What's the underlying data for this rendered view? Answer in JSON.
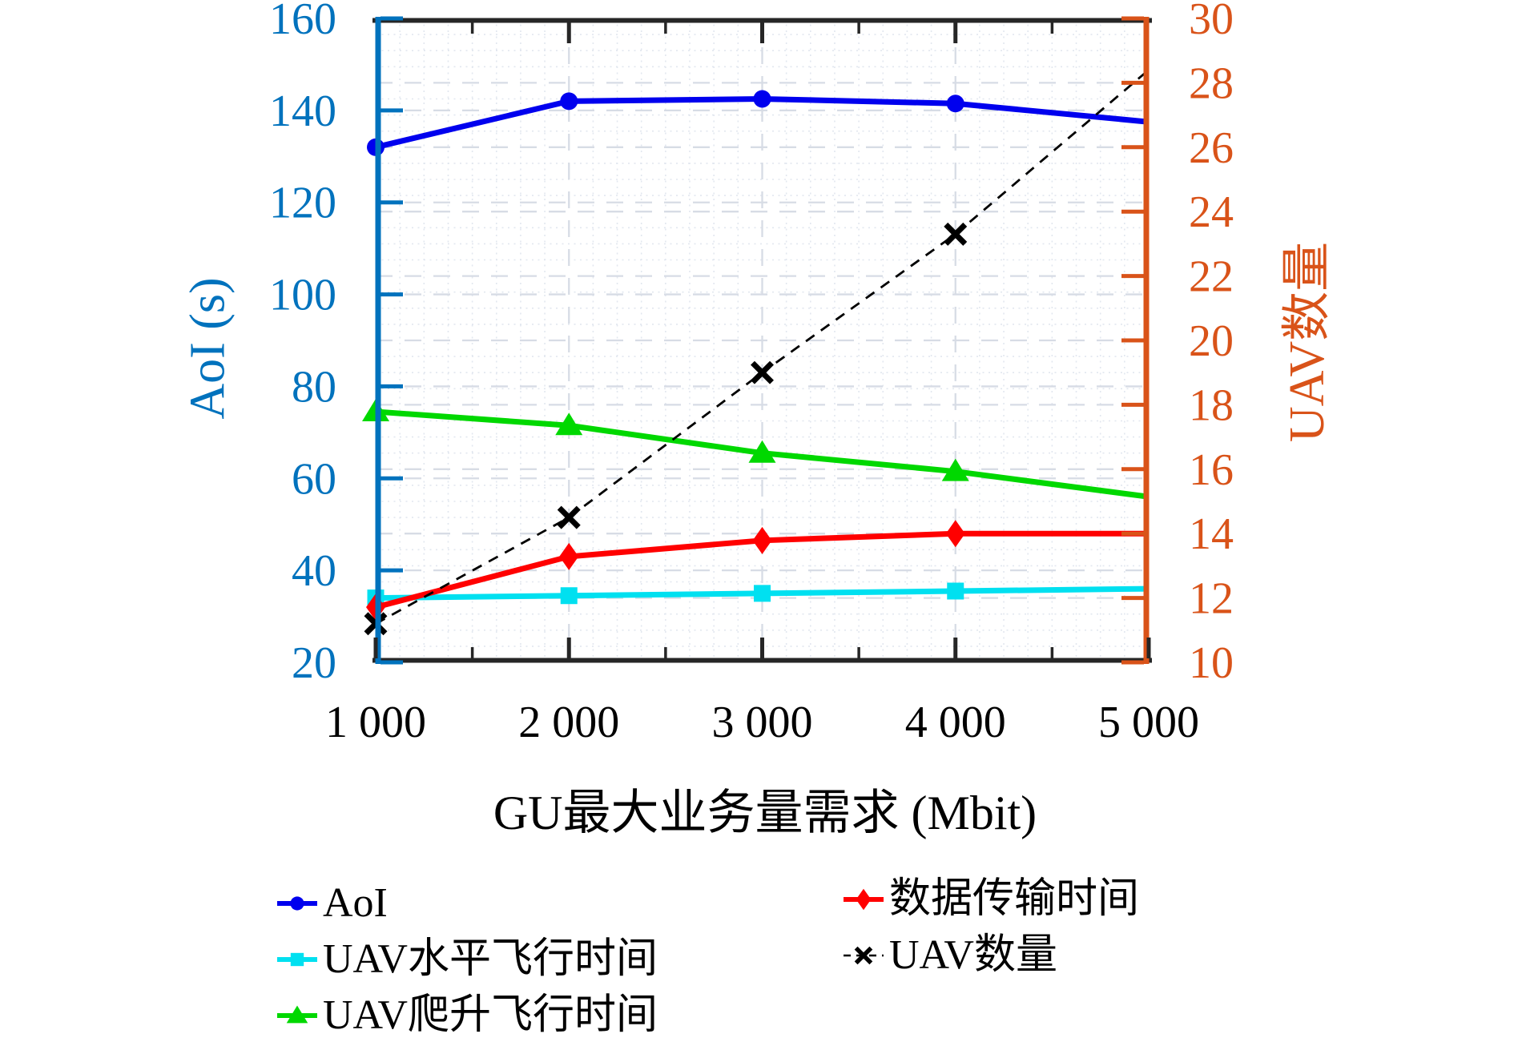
{
  "figure": {
    "background": "#ffffff",
    "frame_color": "#262626"
  },
  "axes": {
    "x": {
      "label": "GU最大业务量需求 (Mbit)",
      "range": [
        1000,
        5000
      ],
      "ticks": [
        1000,
        2000,
        3000,
        4000,
        5000
      ],
      "tick_labels": [
        "1 000",
        "2 000",
        "3 000",
        "4 000",
        "5 000"
      ],
      "minor_step": 500,
      "color": "#000000"
    },
    "y_left": {
      "label": "AoI (s)",
      "color": "#0072BD",
      "range": [
        20,
        160
      ],
      "ticks": [
        20,
        40,
        60,
        80,
        100,
        120,
        140,
        160
      ],
      "tick_labels": [
        "20",
        "40",
        "60",
        "80",
        "100",
        "120",
        "140",
        "160"
      ]
    },
    "y_right": {
      "label": "UAV数量",
      "color": "#D95319",
      "range": [
        10,
        30
      ],
      "ticks": [
        10,
        12,
        14,
        16,
        18,
        20,
        22,
        24,
        26,
        28,
        30
      ],
      "tick_labels": [
        "10",
        "12",
        "14",
        "16",
        "18",
        "20",
        "22",
        "24",
        "26",
        "28",
        "30"
      ]
    }
  },
  "chart_data": {
    "type": "line",
    "title": "",
    "xlabel": "GU最大业务量需求 (Mbit)",
    "ylabel_left": "AoI (s)",
    "ylabel_right": "UAV数量",
    "x": [
      1000,
      2000,
      3000,
      4000,
      5000
    ],
    "xlim": [
      1000,
      5000
    ],
    "ylim_left": [
      20,
      160
    ],
    "ylim_right": [
      10,
      30
    ],
    "grid": {
      "major": true,
      "minor": true
    },
    "series": [
      {
        "name": "AoI",
        "axis": "left",
        "color": "#0000EE",
        "marker": "circle",
        "linestyle": "solid",
        "values": [
          132,
          142,
          142.5,
          141.5,
          137.5
        ]
      },
      {
        "name": "UAV水平飞行时间",
        "axis": "left",
        "color": "#00E0F0",
        "marker": "square",
        "linestyle": "solid",
        "values": [
          34,
          34.5,
          35,
          35.5,
          36
        ]
      },
      {
        "name": "UAV爬升飞行时间",
        "axis": "left",
        "color": "#00D800",
        "marker": "triangle",
        "linestyle": "solid",
        "values": [
          74.5,
          71.5,
          65.5,
          61.5,
          56
        ]
      },
      {
        "name": "数据传输时间",
        "axis": "left",
        "color": "#FF0000",
        "marker": "diamond",
        "linestyle": "solid",
        "values": [
          32,
          43,
          46.5,
          48,
          48
        ]
      },
      {
        "name": "UAV数量",
        "axis": "right",
        "color": "#000000",
        "marker": "x",
        "linestyle": "dashed",
        "values": [
          11.2,
          14.5,
          19,
          23.3,
          28.4
        ]
      }
    ],
    "legend_position": "below"
  },
  "legend": {
    "columns": [
      [
        {
          "label": "AoI",
          "marker": "circle",
          "color": "#0000EE",
          "linestyle": "solid"
        },
        {
          "label": "UAV水平飞行时间",
          "marker": "square",
          "color": "#00E0F0",
          "linestyle": "solid"
        },
        {
          "label": "UAV爬升飞行时间",
          "marker": "triangle",
          "color": "#00D800",
          "linestyle": "solid"
        }
      ],
      [
        {
          "label": "数据传输时间",
          "marker": "diamond",
          "color": "#FF0000",
          "linestyle": "solid"
        },
        {
          "label": "UAV数量",
          "marker": "x",
          "color": "#000000",
          "linestyle": "dashed"
        }
      ]
    ]
  }
}
